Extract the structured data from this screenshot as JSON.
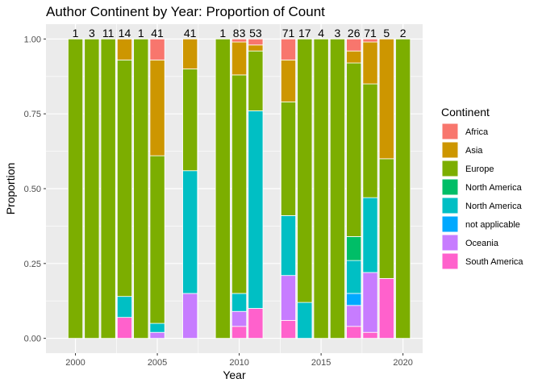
{
  "chart_data": {
    "type": "bar",
    "title": "Author Continent by Year: Proportion of Count",
    "xlabel": "Year",
    "ylabel": "Proportion",
    "xlim": [
      1998.2,
      2021.2
    ],
    "ylim": [
      0,
      1
    ],
    "x_ticks": [
      2000,
      2005,
      2010,
      2015,
      2020
    ],
    "y_ticks": [
      0,
      0.25,
      0.5,
      0.75,
      1
    ],
    "y_tick_labels": [
      "0.00",
      "0.25",
      "0.50",
      "0.75",
      "1.00"
    ],
    "grid": true,
    "stacked": true,
    "legend": {
      "title": "Continent",
      "placement": "right",
      "entries": [
        {
          "name": "Africa",
          "color": "#F8766D"
        },
        {
          "name": "Asia",
          "color": "#CD9600"
        },
        {
          "name": "Europe",
          "color": "#7CAE00"
        },
        {
          "name": "North  America",
          "color": "#00BE67"
        },
        {
          "name": "North America",
          "color": "#00BFC4"
        },
        {
          "name": "not applicable",
          "color": "#00A9FF"
        },
        {
          "name": "Oceania",
          "color": "#C77CFF"
        },
        {
          "name": "South America",
          "color": "#FF61CC"
        }
      ]
    },
    "bars": [
      {
        "year": 2000,
        "count": "1",
        "segments": {
          "Europe": 1.0
        }
      },
      {
        "year": 2001,
        "count": "3",
        "segments": {
          "Europe": 1.0
        }
      },
      {
        "year": 2002,
        "count": "11",
        "segments": {
          "Europe": 1.0
        }
      },
      {
        "year": 2003,
        "count": "14",
        "segments": {
          "Asia": 0.07,
          "Europe": 0.79,
          "North America": 0.07,
          "South America": 0.07
        }
      },
      {
        "year": 2004,
        "count": "1",
        "segments": {
          "Europe": 1.0
        }
      },
      {
        "year": 2005,
        "count": "41",
        "segments": {
          "Africa": 0.07,
          "Asia": 0.32,
          "Europe": 0.56,
          "North America": 0.03,
          "Oceania": 0.02
        }
      },
      {
        "year": 2007,
        "count": "41",
        "segments": {
          "Asia": 0.1,
          "Europe": 0.34,
          "North America": 0.41,
          "Oceania": 0.15
        }
      },
      {
        "year": 2009,
        "count": "1",
        "segments": {
          "Europe": 1.0
        }
      },
      {
        "year": 2010,
        "count": "83",
        "segments": {
          "Africa": 0.01,
          "Asia": 0.11,
          "Europe": 0.73,
          "North America": 0.06,
          "Oceania": 0.05,
          "South America": 0.04
        }
      },
      {
        "year": 2011,
        "count": "53",
        "segments": {
          "Africa": 0.02,
          "Asia": 0.02,
          "Europe": 0.2,
          "North America": 0.66,
          "South America": 0.1
        }
      },
      {
        "year": 2013,
        "count": "71",
        "segments": {
          "Africa": 0.07,
          "Asia": 0.14,
          "Europe": 0.38,
          "North America": 0.2,
          "Oceania": 0.15,
          "South America": 0.06
        }
      },
      {
        "year": 2014,
        "count": "17",
        "segments": {
          "Europe": 0.88,
          "North America": 0.12
        }
      },
      {
        "year": 2015,
        "count": "4",
        "segments": {
          "Europe": 1.0
        }
      },
      {
        "year": 2016,
        "count": "3",
        "segments": {
          "Europe": 1.0
        }
      },
      {
        "year": 2017,
        "count": "26",
        "segments": {
          "Africa": 0.04,
          "Asia": 0.04,
          "Europe": 0.58,
          "North  America": 0.08,
          "North America": 0.11,
          "not applicable": 0.04,
          "Oceania": 0.07,
          "South America": 0.04
        }
      },
      {
        "year": 2018,
        "count": "71",
        "segments": {
          "Africa": 0.01,
          "Asia": 0.14,
          "Europe": 0.38,
          "North America": 0.25,
          "Oceania": 0.2,
          "South America": 0.02
        }
      },
      {
        "year": 2019,
        "count": "5",
        "segments": {
          "Asia": 0.4,
          "Europe": 0.4,
          "South America": 0.2
        }
      },
      {
        "year": 2020,
        "count": "2",
        "segments": {
          "Europe": 1.0
        }
      }
    ]
  }
}
